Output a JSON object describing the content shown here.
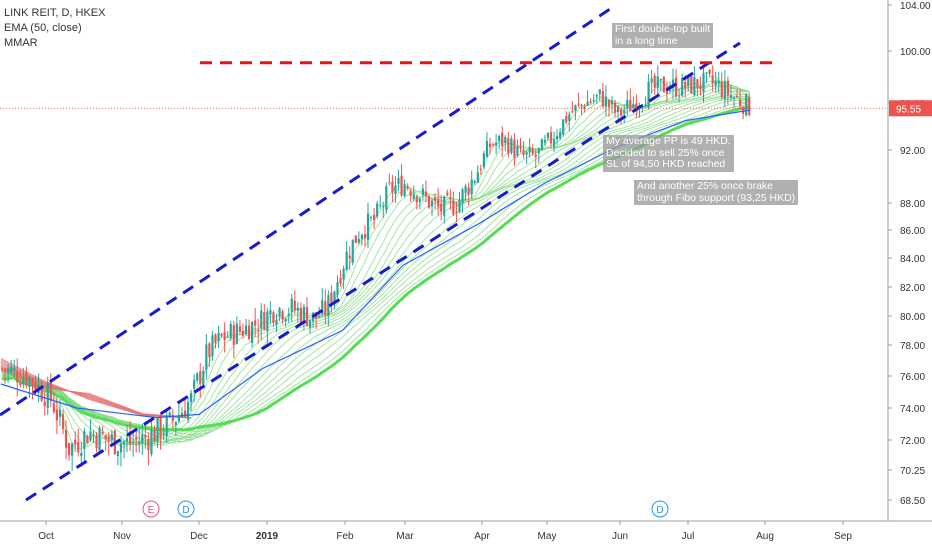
{
  "legend": {
    "symbol_line": "LINK REIT, D, HKEX",
    "ema_line": "EMA (50, close)",
    "mmar_line": "MMAR"
  },
  "chart_data": {
    "type": "candlestick",
    "symbol": "LINK REIT",
    "interval": "D",
    "exchange": "HKEX",
    "y_ticks": [
      "104.00",
      "100.00",
      "96.00",
      "92.00",
      "88.00",
      "86.00",
      "84.00",
      "82.00",
      "80.00",
      "78.00",
      "76.00",
      "74.00",
      "72.00",
      "70.25",
      "68.50"
    ],
    "ylim": [
      67.5,
      104.5
    ],
    "x_ticks": [
      "Oct",
      "Nov",
      "Dec",
      "2019",
      "Feb",
      "Mar",
      "Apr",
      "May",
      "Jun",
      "Jul",
      "Aug",
      "Sep"
    ],
    "last_price": "95.55",
    "resistance_level": 99.1,
    "upper_channel": {
      "from": [
        "Sep 2018",
        73.8
      ],
      "to": [
        "Jun 2019",
        104.5
      ]
    },
    "lower_channel": {
      "from": [
        "Sep 2018",
        68.0
      ],
      "to": [
        "Jul 2019",
        100.0
      ]
    },
    "events": [
      {
        "label": "E",
        "date": "mid Nov 2018",
        "color": "#e0557a"
      },
      {
        "label": "D",
        "date": "late Nov 2018",
        "color": "#2196f3"
      },
      {
        "label": "D",
        "date": "mid Jun 2019",
        "color": "#2196f3"
      }
    ],
    "annotations": [
      {
        "text": "First double-top built\nin a long time"
      },
      {
        "text": "My average PP is 49 HKD.\nDecided to sell 25% once\nSL of 94,50 HKD reached"
      },
      {
        "text": "And another 25% once brake\nthrough Fibo support (93,25 HKD)"
      }
    ],
    "price_path": [
      [
        "Sep 15",
        76.5
      ],
      [
        "Sep 25",
        76.0
      ],
      [
        "Oct 5",
        74.5
      ],
      [
        "Oct 12",
        71.5
      ],
      [
        "Oct 20",
        72.5
      ],
      [
        "Oct 28",
        72.0
      ],
      [
        "Nov 5",
        71.8
      ],
      [
        "Nov 12",
        72.2
      ],
      [
        "Nov 20",
        73.0
      ],
      [
        "Nov 28",
        74.5
      ],
      [
        "Dec 5",
        77.5
      ],
      [
        "Dec 12",
        78.5
      ],
      [
        "Dec 20",
        79.0
      ],
      [
        "Dec 28",
        79.5
      ],
      [
        "Jan 5",
        80.5
      ],
      [
        "Jan 12",
        80.5
      ],
      [
        "Jan 20",
        79.8
      ],
      [
        "Jan 25",
        80.5
      ],
      [
        "Feb 1",
        84.0
      ],
      [
        "Feb 8",
        86.0
      ],
      [
        "Feb 15",
        86.8
      ],
      [
        "Feb 22",
        89.0
      ],
      [
        "Mar 1",
        89.5
      ],
      [
        "Mar 8",
        88.5
      ],
      [
        "Mar 15",
        87.5
      ],
      [
        "Mar 22",
        88.0
      ],
      [
        "Mar 29",
        90.0
      ],
      [
        "Apr 5",
        92.5
      ],
      [
        "Apr 12",
        92.8
      ],
      [
        "Apr 19",
        91.5
      ],
      [
        "Apr 26",
        91.5
      ],
      [
        "May 3",
        93.0
      ],
      [
        "May 10",
        95.0
      ],
      [
        "May 17",
        96.0
      ],
      [
        "May 24",
        96.5
      ],
      [
        "May 31",
        95.0
      ],
      [
        "Jun 7",
        96.0
      ],
      [
        "Jun 14",
        97.0
      ],
      [
        "Jun 21",
        97.3
      ],
      [
        "Jun 28",
        97.2
      ],
      [
        "Jul 5",
        97.5
      ],
      [
        "Jul 12",
        97.5
      ],
      [
        "Jul 19",
        96.5
      ],
      [
        "Jul 26",
        95.6
      ]
    ],
    "ema_50_path": [
      [
        "Sep 15",
        75.5
      ],
      [
        "Oct 15",
        74.0
      ],
      [
        "Nov 15",
        73.4
      ],
      [
        "Dec 1",
        73.6
      ],
      [
        "Dec 31",
        76.5
      ],
      [
        "Jan 31",
        79.0
      ],
      [
        "Feb 28",
        83.5
      ],
      [
        "Mar 31",
        86.5
      ],
      [
        "Apr 30",
        89.5
      ],
      [
        "May 31",
        92.3
      ],
      [
        "Jun 30",
        94.5
      ],
      [
        "Jul 26",
        95.4
      ]
    ]
  },
  "colors": {
    "up_candle": "#26a69a",
    "down_candle": "#ef5350",
    "channel_line": "#1a1acc",
    "resistance_line": "#ee1111",
    "ribbon_fast": "#7dd87d",
    "ribbon_slow": "#55dd55",
    "ribbon_bear": "#e57373",
    "ema": "#2962ff",
    "price_badge": "#ef5350"
  }
}
